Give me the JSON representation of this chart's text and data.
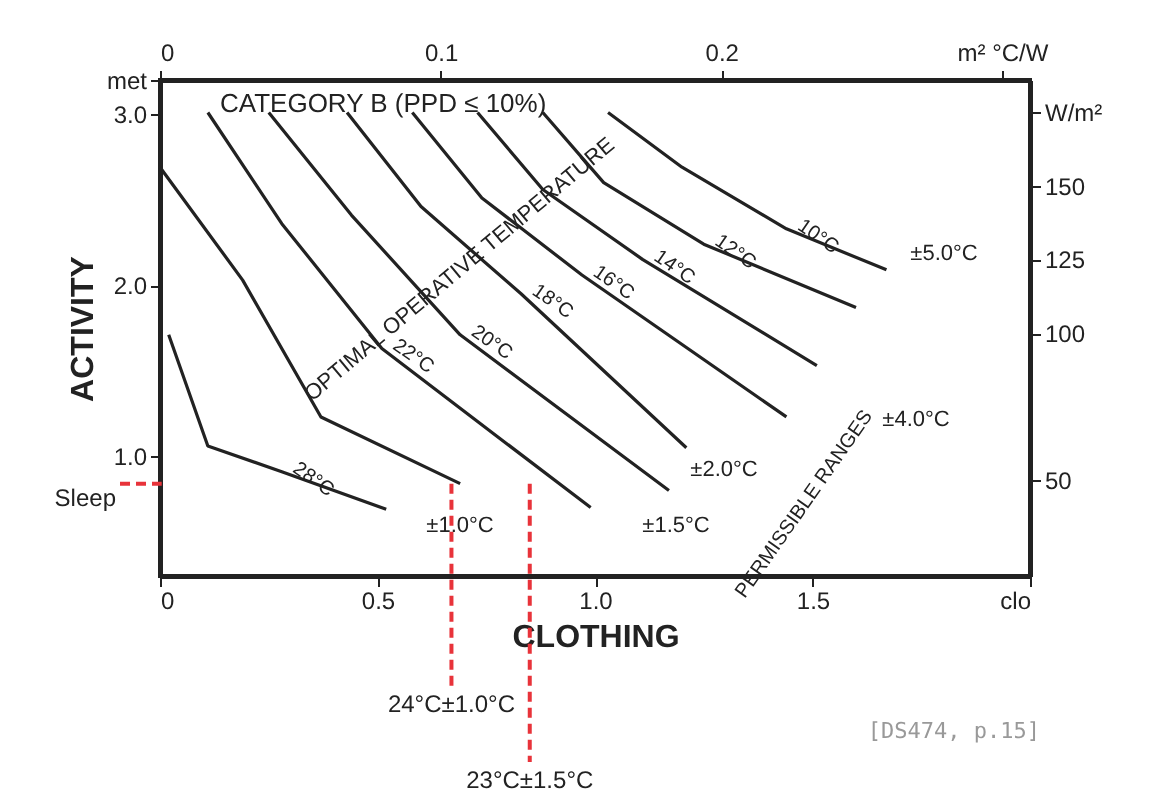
{
  "chart_data": {
    "type": "line",
    "title": "CATEGORY B   (PPD ≤ 10%)",
    "xlabel": "CLOTHING",
    "ylabel": "ACTIVITY",
    "xlim": [
      0,
      2.0
    ],
    "xticks": [
      0,
      0.5,
      {
        "value": 1.0,
        "label": "1.0"
      },
      1.5,
      {
        "value": 2.0,
        "label": "clo"
      }
    ],
    "x2lim": [
      0,
      0.31
    ],
    "x2ticks": [
      0,
      0.1,
      0.2,
      {
        "value": 0.3,
        "label": "m² °C/W"
      }
    ],
    "ylim": [
      0.3,
      3.2
    ],
    "yticks": [
      {
        "value": 1.0,
        "label": "1.0"
      },
      {
        "value": 2.0,
        "label": "2.0"
      },
      {
        "value": 3.0,
        "label": "3.0"
      },
      {
        "value": 3.2,
        "label": "met"
      }
    ],
    "y2lim": [
      17.4,
      186
    ],
    "y2ticks": [
      50,
      100,
      125,
      150,
      {
        "value": 175,
        "label": "W/m²"
      }
    ],
    "grid": false,
    "marker": "none",
    "line_style": "solid",
    "series": [
      {
        "name": "10°C",
        "color": "#222222",
        "x": [
          1.03,
          1.2,
          1.44,
          1.67
        ],
        "values": [
          3.01,
          2.69,
          2.33,
          2.09
        ]
      },
      {
        "name": "12°C",
        "color": "#222222",
        "x": [
          0.88,
          1.02,
          1.25,
          1.6
        ],
        "values": [
          3.01,
          2.6,
          2.24,
          1.87
        ]
      },
      {
        "name": "14°C",
        "color": "#222222",
        "x": [
          0.73,
          0.88,
          1.11,
          1.51
        ],
        "values": [
          3.01,
          2.56,
          2.15,
          1.53
        ]
      },
      {
        "name": "16°C",
        "color": "#222222",
        "x": [
          0.58,
          0.74,
          0.97,
          1.44
        ],
        "values": [
          3.01,
          2.51,
          2.06,
          1.23
        ]
      },
      {
        "name": "18°C",
        "color": "#222222",
        "x": [
          0.43,
          0.6,
          0.83,
          1.21
        ],
        "values": [
          3.01,
          2.46,
          1.95,
          1.05
        ]
      },
      {
        "name": "20°C",
        "color": "#222222",
        "x": [
          0.25,
          0.44,
          0.69,
          1.17
        ],
        "values": [
          3.01,
          2.41,
          1.71,
          0.8
        ]
      },
      {
        "name": "22°C",
        "color": "#222222",
        "x": [
          0.11,
          0.28,
          0.51,
          0.99
        ],
        "values": [
          3.01,
          2.36,
          1.63,
          0.7
        ]
      },
      {
        "color": "#222222",
        "x": [
          0,
          0.19,
          0.37,
          0.69
        ],
        "values": [
          2.69,
          2.03,
          1.23,
          0.84
        ]
      },
      {
        "name": "28°C",
        "color": "#222222",
        "x": [
          0.02,
          0.11,
          0.28,
          0.52
        ],
        "values": [
          1.71,
          1.06,
          0.91,
          0.69
        ]
      }
    ],
    "ref_lines": [
      {
        "axis": "y",
        "value": 0.84,
        "label": "Sleep",
        "color": "#e8333a",
        "line_style": "dashed"
      },
      {
        "axis": "x",
        "value": 0.67,
        "label": "24°C±1.0°C",
        "color": "#e8333a",
        "line_style": "dashed"
      },
      {
        "axis": "x",
        "value": 0.85,
        "label": "23°C±1.5°C",
        "color": "#e8333a",
        "line_style": "dashed"
      }
    ],
    "annotations": [
      "OPTIMAL OPERATIVE TEMPERATURE",
      "PERMISSIBLE RANGES",
      "±1.0°C",
      "±1.5°C",
      "±2.0°C",
      "±4.0°C",
      "±5.0°C",
      "[DS474, p.15]"
    ]
  }
}
